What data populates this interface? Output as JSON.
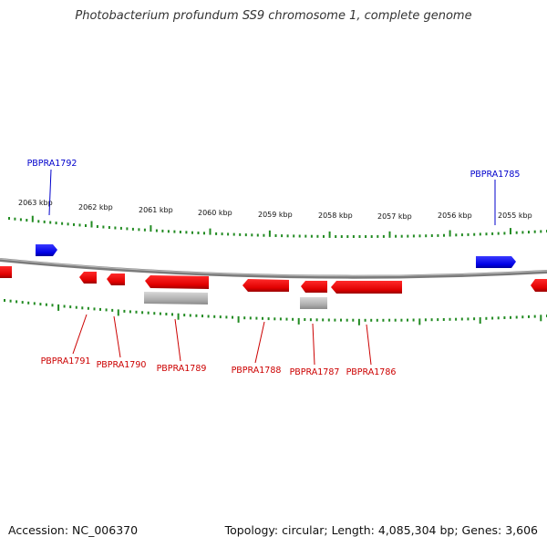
{
  "title": "Photobacterium profundum SS9 chromosome 1, complete genome",
  "footer": {
    "accession": "Accession: NC_006370",
    "topology": "Topology: circular; Length: 4,085,304 bp; Genes: 3,606"
  },
  "colors": {
    "forward_gene": "#0000ee",
    "reverse_gene": "#ee0000",
    "rna_gene": "#aaaaaa",
    "backbone": "#7a7a7a",
    "ticks": "#228b22",
    "kbp_label": "#111111"
  },
  "kbp_ticks": [
    "2063 kbp",
    "2062 kbp",
    "2061 kbp",
    "2060 kbp",
    "2059 kbp",
    "2058 kbp",
    "2057 kbp",
    "2056 kbp",
    "2055 kbp"
  ],
  "genes": [
    {
      "name": "PBPRA1792",
      "strand": "forward",
      "labelled": true
    },
    {
      "name": "PBPRA1785",
      "strand": "forward",
      "labelled": true
    },
    {
      "name": "PBPRA1791",
      "strand": "reverse",
      "labelled": true
    },
    {
      "name": "PBPRA1790",
      "strand": "reverse",
      "labelled": true
    },
    {
      "name": "PBPRA1789",
      "strand": "reverse",
      "labelled": true
    },
    {
      "name": "PBPRA1788",
      "strand": "reverse",
      "labelled": true
    },
    {
      "name": "PBPRA1787",
      "strand": "reverse",
      "labelled": true
    },
    {
      "name": "PBPRA1786",
      "strand": "reverse",
      "labelled": true
    }
  ]
}
